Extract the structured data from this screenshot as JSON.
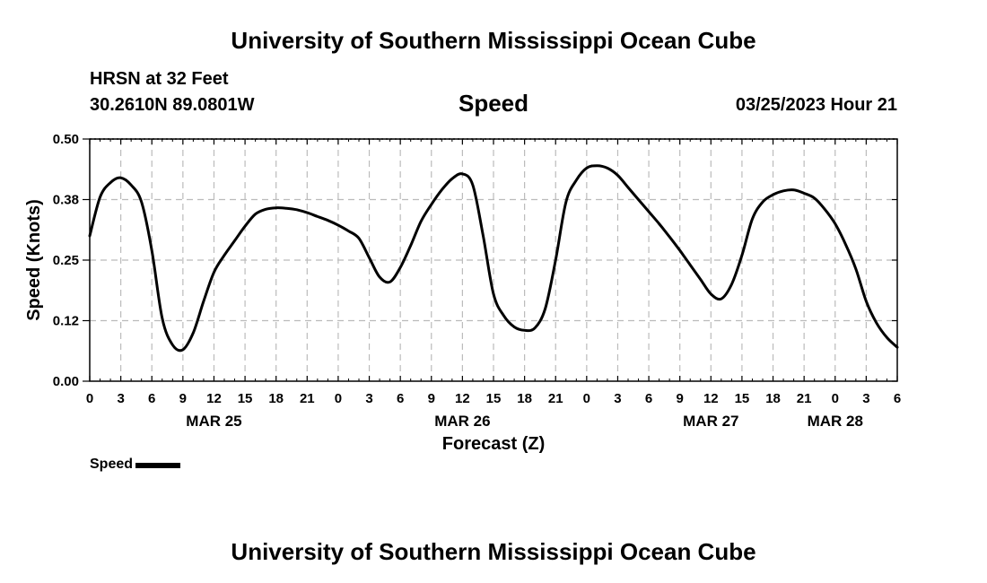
{
  "header": {
    "title": "University of Southern Mississippi Ocean Cube",
    "station": "HRSN at 32 Feet",
    "coords": "30.2610N  89.0801W",
    "date": "03/25/2023 Hour 21"
  },
  "footer": {
    "title": "University of Southern Mississippi Ocean Cube"
  },
  "legend": {
    "label": "Speed"
  },
  "chart_data": {
    "type": "line",
    "title": "Speed",
    "xlabel": "Forecast (Z)",
    "ylabel": "Speed (Knots)",
    "ylim": [
      0,
      0.5
    ],
    "xlim": [
      0,
      78
    ],
    "yticks": [
      "0.00",
      "0.12",
      "0.25",
      "0.38",
      "0.50"
    ],
    "xtick_labels": [
      "0",
      "3",
      "6",
      "9",
      "12",
      "15",
      "18",
      "21",
      "0",
      "3",
      "6",
      "9",
      "12",
      "15",
      "18",
      "21",
      "0",
      "3",
      "6",
      "9",
      "12",
      "15",
      "18",
      "21",
      "0",
      "3",
      "6"
    ],
    "date_labels": [
      {
        "hour": 12,
        "label": "MAR 25"
      },
      {
        "hour": 36,
        "label": "MAR 26"
      },
      {
        "hour": 60,
        "label": "MAR 27"
      },
      {
        "hour": 72,
        "label": "MAR 28"
      }
    ],
    "grid": true,
    "series": [
      {
        "name": "Speed",
        "color": "#000000",
        "x": [
          0,
          1,
          2,
          3,
          4,
          5,
          6,
          7,
          8,
          9,
          10,
          11,
          12,
          13,
          14,
          15,
          16,
          17,
          18,
          19,
          20,
          21,
          22,
          23,
          24,
          25,
          26,
          27,
          28,
          29,
          30,
          31,
          32,
          33,
          34,
          35,
          36,
          37,
          38,
          39,
          40,
          41,
          42,
          43,
          44,
          45,
          46,
          47,
          48,
          49,
          50,
          51,
          52,
          53,
          54,
          55,
          56,
          57,
          58,
          59,
          60,
          61,
          62,
          63,
          64,
          65,
          66,
          67,
          68,
          69,
          70,
          71,
          72,
          73,
          74,
          75,
          76,
          77,
          78
        ],
        "values": [
          0.3,
          0.38,
          0.41,
          0.42,
          0.405,
          0.37,
          0.27,
          0.13,
          0.075,
          0.065,
          0.1,
          0.165,
          0.225,
          0.26,
          0.29,
          0.32,
          0.345,
          0.355,
          0.358,
          0.357,
          0.354,
          0.348,
          0.34,
          0.332,
          0.322,
          0.31,
          0.295,
          0.255,
          0.215,
          0.205,
          0.235,
          0.28,
          0.33,
          0.365,
          0.395,
          0.418,
          0.428,
          0.405,
          0.3,
          0.18,
          0.135,
          0.112,
          0.105,
          0.11,
          0.15,
          0.25,
          0.37,
          0.415,
          0.44,
          0.445,
          0.44,
          0.425,
          0.4,
          0.375,
          0.35,
          0.325,
          0.298,
          0.27,
          0.24,
          0.21,
          0.18,
          0.17,
          0.2,
          0.26,
          0.335,
          0.37,
          0.385,
          0.393,
          0.395,
          0.388,
          0.378,
          0.355,
          0.325,
          0.283,
          0.232,
          0.165,
          0.12,
          0.09,
          0.07
        ]
      }
    ]
  }
}
